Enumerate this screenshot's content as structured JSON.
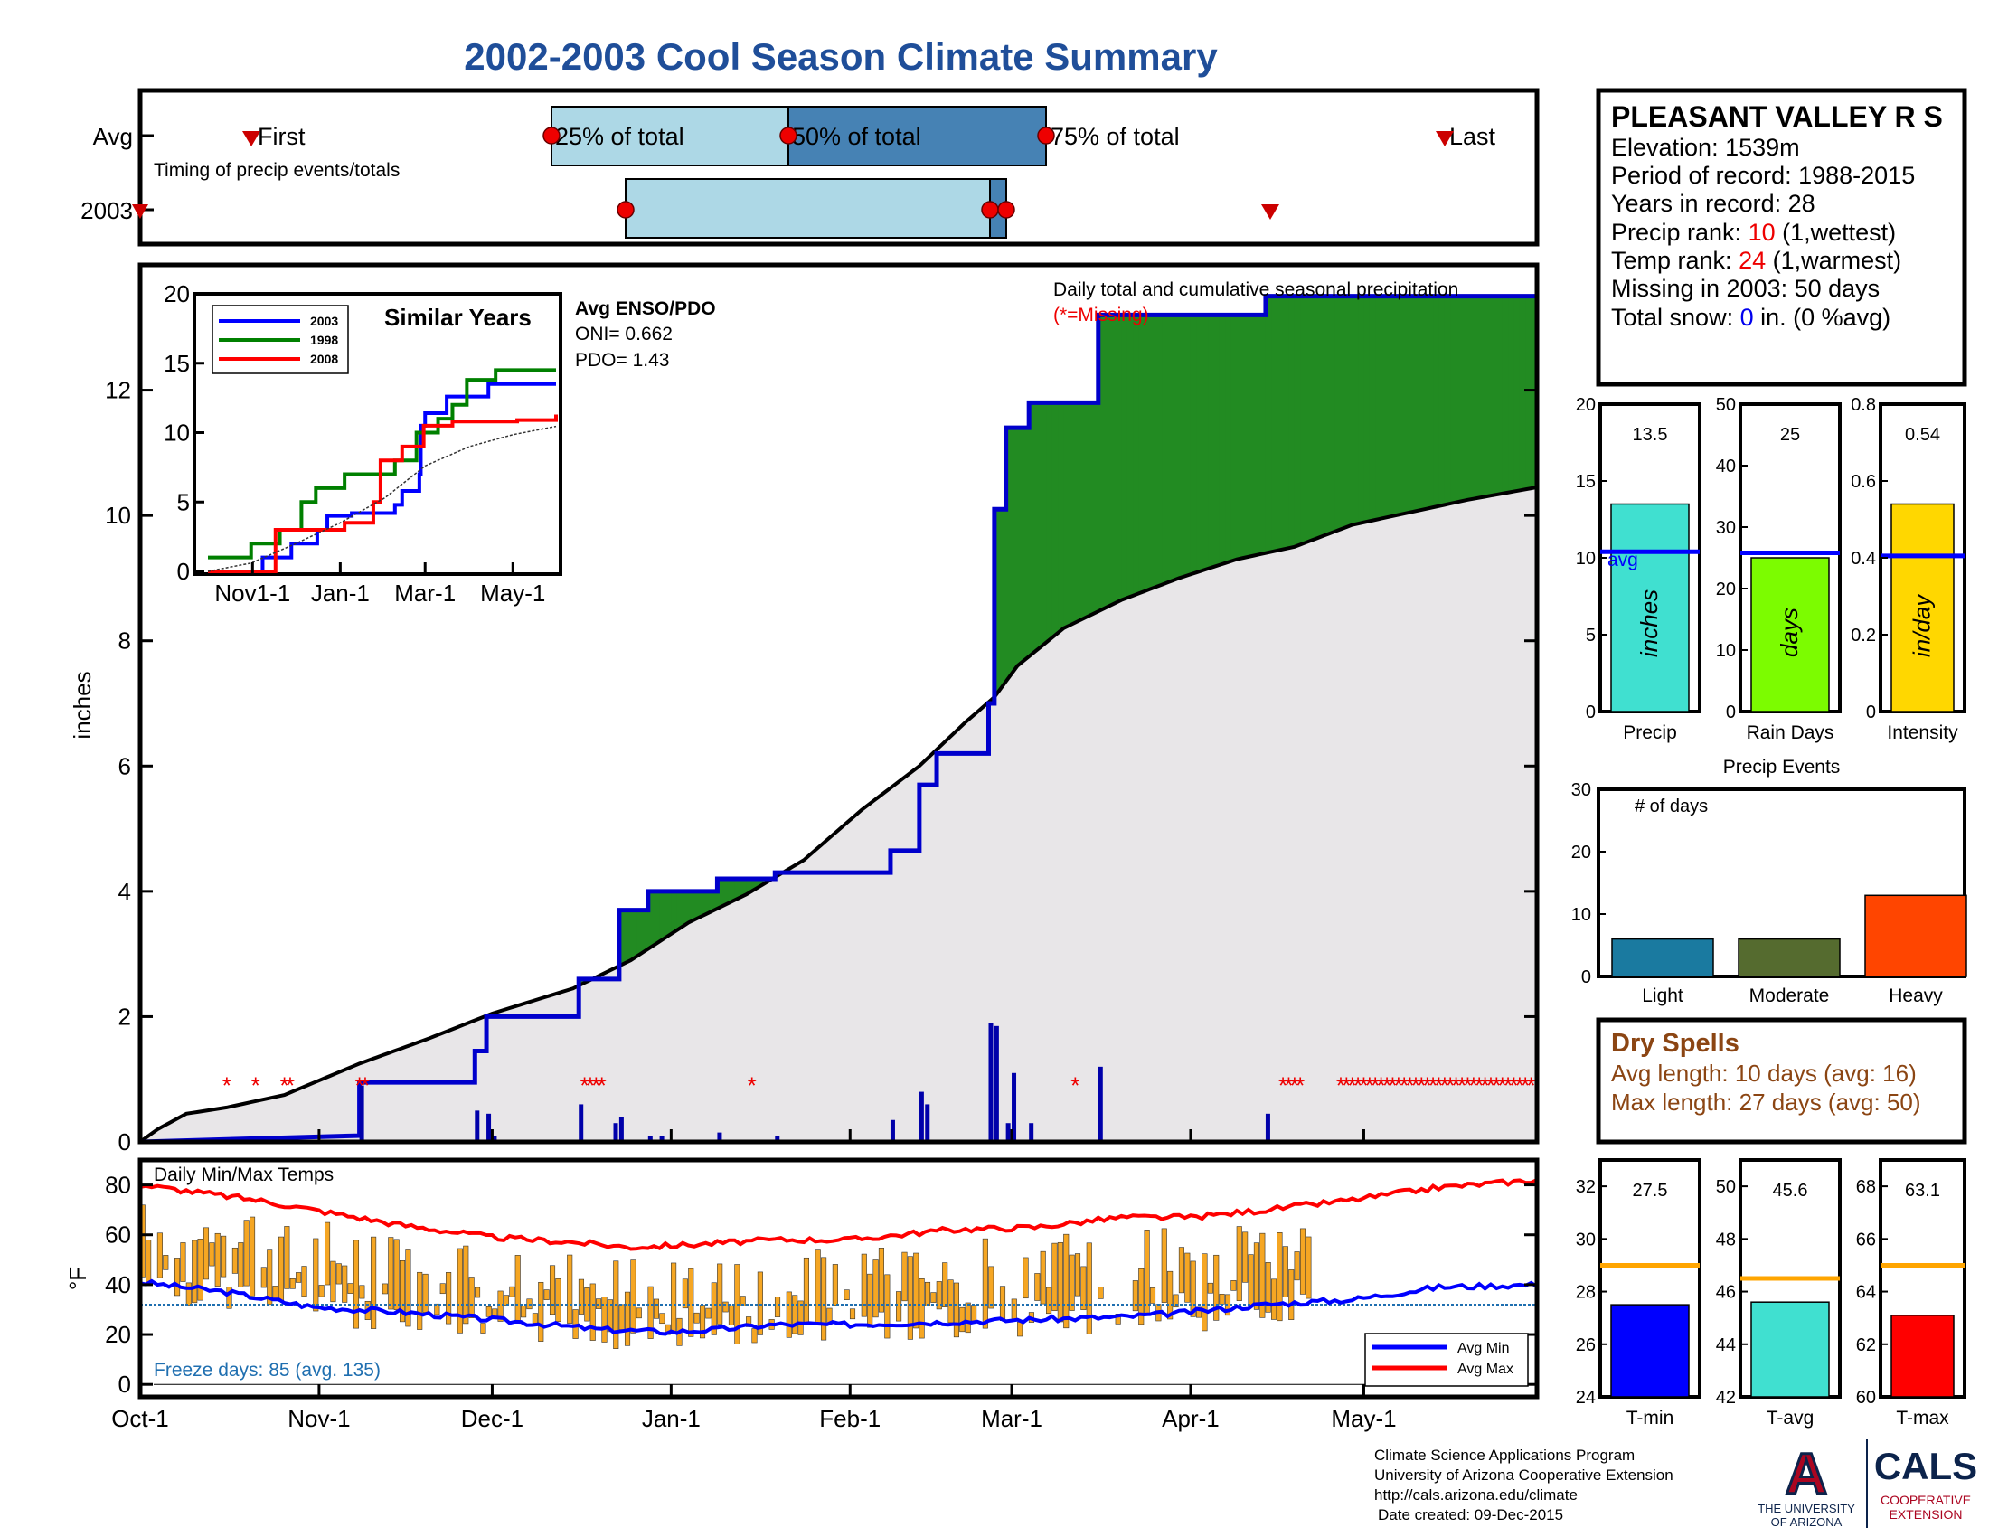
{
  "title": "2002-2003 Cool Season Climate Summary",
  "colors": {
    "title": "#1F4E99",
    "accum_green": "#228B22",
    "accum_brown": "#B8860B",
    "cum_fill": "#E8E6E8",
    "cum_line": "#0000CC",
    "temp_bar": "#F5A623",
    "avg_min": "#0000FF",
    "avg_max": "#FF0000",
    "precip_bar": "#40E0D0",
    "raindays_bar": "#7CFC00",
    "intensity_bar": "#FFD700",
    "light_bar": "#1A7AA0",
    "moderate_bar": "#556B2F",
    "heavy_bar": "#FF4500",
    "tmin_bar": "#0000FF",
    "tavg_bar": "#40E0D0",
    "tmax_bar": "#FF0000",
    "avg_line_orange": "#FFA500",
    "dry_spell_text": "#8B4513"
  },
  "timing": {
    "caption": "Timing of precip events/totals",
    "avg_label": "Avg",
    "year_label": "2003",
    "first_label": "First",
    "last_label": "Last",
    "p25_label": "25% of total",
    "p50_label": "50% of total",
    "p75_label": "75% of total"
  },
  "station": {
    "name": "PLEASANT VALLEY R S",
    "elevation": "Elevation: 1539m",
    "period": "Period of record: 1988-2015",
    "years": "Years in record: 28",
    "precip_rank_label": "Precip rank: ",
    "precip_rank_value": "10",
    "precip_rank_suffix": " (1,wettest)",
    "temp_rank_label": "Temp rank: ",
    "temp_rank_value": "24",
    "temp_rank_suffix": " (1,warmest)",
    "missing": "Missing in 2003: 50 days",
    "snow_label": "Total snow: ",
    "snow_value": "0",
    "snow_suffix": " in. (0 %avg)"
  },
  "main_panel": {
    "ylabel": "inches",
    "caption": "Daily total and cumulative seasonal precipitation",
    "missing_note": "(*=Missing)",
    "enso_title": "Avg ENSO/PDO",
    "oni": "ONI= 0.662",
    "pdo": "PDO= 1.43",
    "inset_title": "Similar Years",
    "inset_legend": [
      "2003",
      "1998",
      "2008"
    ]
  },
  "temp_panel": {
    "ylabel": "°F",
    "title": "Daily Min/Max Temps",
    "freeze": "Freeze days: 85 (avg. 135)",
    "legend_min": "Avg Min",
    "legend_max": "Avg Max"
  },
  "summary_bars": {
    "precip": {
      "value": "13.5",
      "label": "Precip",
      "unit": "inches",
      "avg_label": "avg"
    },
    "raindays": {
      "value": "25",
      "label": "Rain Days",
      "unit": "days"
    },
    "intensity": {
      "value": "0.54",
      "label": "Intensity",
      "unit": "in/day"
    },
    "events_title": "Precip Events",
    "events_ylabel": "# of days",
    "events_labels": [
      "Light",
      "Moderate",
      "Heavy"
    ],
    "tmin": {
      "value": "27.5",
      "label": "T-min"
    },
    "tavg": {
      "value": "45.6",
      "label": "T-avg"
    },
    "tmax": {
      "value": "63.1",
      "label": "T-max"
    }
  },
  "dry_spells": {
    "title": "Dry Spells",
    "avg": "Avg length: 10 days (avg: 16)",
    "max": "Max length: 27 days (avg: 50)"
  },
  "footer": {
    "line1": "Climate Science Applications Program",
    "line2": "University of Arizona Cooperative Extension",
    "line3": "http://cals.arizona.edu/climate",
    "line4": "Date created: 09-Dec-2015",
    "logo_ua": "A",
    "logo_ua_text1": "THE UNIVERSITY",
    "logo_ua_text2": "OF ARIZONA",
    "logo_cals": "CALS",
    "logo_cals_sub1": "COOPERATIVE",
    "logo_cals_sub2": "EXTENSION"
  },
  "chart_data": [
    {
      "type": "line",
      "name": "cumulative_precip",
      "ylabel": "inches",
      "ylim": [
        0,
        14
      ],
      "yticks": [
        0,
        2,
        4,
        6,
        8,
        10,
        12
      ],
      "x_labels": [
        "Oct-1",
        "Nov-1",
        "Dec-1",
        "Jan-1",
        "Feb-1",
        "Mar-1",
        "Apr-1",
        "May-1"
      ],
      "x_label_days": [
        0,
        31,
        61,
        92,
        123,
        151,
        182,
        212
      ],
      "x_max_day": 242,
      "avg_cumulative": [
        [
          0,
          0
        ],
        [
          3,
          0.2
        ],
        [
          8,
          0.45
        ],
        [
          15,
          0.55
        ],
        [
          25,
          0.75
        ],
        [
          38,
          1.25
        ],
        [
          50,
          1.65
        ],
        [
          61,
          2.05
        ],
        [
          75,
          2.45
        ],
        [
          85,
          2.9
        ],
        [
          95,
          3.5
        ],
        [
          105,
          3.95
        ],
        [
          115,
          4.5
        ],
        [
          125,
          5.3
        ],
        [
          135,
          6.0
        ],
        [
          143,
          6.7
        ],
        [
          148,
          7.1
        ],
        [
          152,
          7.6
        ],
        [
          160,
          8.2
        ],
        [
          170,
          8.65
        ],
        [
          180,
          9.0
        ],
        [
          190,
          9.3
        ],
        [
          200,
          9.5
        ],
        [
          210,
          9.85
        ],
        [
          220,
          10.05
        ],
        [
          230,
          10.25
        ],
        [
          242,
          10.45
        ]
      ],
      "obs_cumulative": [
        [
          0,
          0
        ],
        [
          19,
          0.05
        ],
        [
          38,
          0.1
        ],
        [
          38,
          0.95
        ],
        [
          58,
          0.95
        ],
        [
          58,
          1.45
        ],
        [
          60,
          1.45
        ],
        [
          60,
          2.0
        ],
        [
          76,
          2.0
        ],
        [
          76,
          2.6
        ],
        [
          83,
          2.6
        ],
        [
          83,
          3.7
        ],
        [
          88,
          3.7
        ],
        [
          88,
          4.0
        ],
        [
          100,
          4.0
        ],
        [
          100,
          4.2
        ],
        [
          110,
          4.2
        ],
        [
          110,
          4.3
        ],
        [
          130,
          4.3
        ],
        [
          130,
          4.65
        ],
        [
          135,
          4.65
        ],
        [
          135,
          5.7
        ],
        [
          138,
          5.7
        ],
        [
          138,
          6.2
        ],
        [
          147,
          6.2
        ],
        [
          147,
          7.0
        ],
        [
          148,
          7.0
        ],
        [
          148,
          10.1
        ],
        [
          150,
          10.1
        ],
        [
          150,
          11.4
        ],
        [
          154,
          11.4
        ],
        [
          154,
          11.8
        ],
        [
          166,
          11.8
        ],
        [
          166,
          13.2
        ],
        [
          182,
          13.2
        ],
        [
          195,
          13.2
        ],
        [
          195,
          13.5
        ],
        [
          242,
          13.5
        ]
      ],
      "daily_precip": [
        [
          38,
          0.9
        ],
        [
          58,
          0.5
        ],
        [
          60,
          0.45
        ],
        [
          61,
          0.1
        ],
        [
          76,
          0.6
        ],
        [
          82,
          0.3
        ],
        [
          83,
          0.4
        ],
        [
          88,
          0.1
        ],
        [
          90,
          0.1
        ],
        [
          100,
          0.15
        ],
        [
          110,
          0.1
        ],
        [
          130,
          0.35
        ],
        [
          135,
          0.8
        ],
        [
          136,
          0.6
        ],
        [
          147,
          1.9
        ],
        [
          148,
          1.85
        ],
        [
          150,
          0.3
        ],
        [
          151,
          1.1
        ],
        [
          154,
          0.3
        ],
        [
          166,
          1.2
        ],
        [
          195,
          0.45
        ]
      ],
      "missing_days": [
        15,
        20,
        25,
        26,
        38,
        39,
        77,
        78,
        79,
        80,
        106,
        162,
        198,
        199,
        200,
        201,
        208,
        209,
        210,
        211,
        212,
        213,
        214,
        215,
        216,
        217,
        218,
        219,
        220,
        221,
        222,
        223,
        224,
        225,
        226,
        227,
        228,
        229,
        230,
        231,
        232,
        233,
        234,
        235,
        236,
        237,
        238,
        239,
        240,
        241
      ]
    },
    {
      "type": "line",
      "name": "similar_years_inset",
      "title": "Similar Years",
      "ylim": [
        0,
        20
      ],
      "yticks": [
        0,
        5,
        10,
        15,
        20
      ],
      "x_labels": [
        "Nov1-1",
        "Jan-1",
        "Mar-1",
        "May-1"
      ],
      "x_label_days": [
        31,
        92,
        151,
        212
      ],
      "series": [
        {
          "name": "2003",
          "values": [
            [
              0,
              0
            ],
            [
              38,
              1
            ],
            [
              58,
              2
            ],
            [
              76,
              3
            ],
            [
              83,
              4
            ],
            [
              100,
              4.2
            ],
            [
              130,
              4.8
            ],
            [
              135,
              5.8
            ],
            [
              147,
              7
            ],
            [
              148,
              10.5
            ],
            [
              151,
              11.4
            ],
            [
              166,
              12.6
            ],
            [
              195,
              13.5
            ],
            [
              242,
              13.5
            ]
          ]
        },
        {
          "name": "1998",
          "values": [
            [
              0,
              1
            ],
            [
              20,
              1
            ],
            [
              30,
              2
            ],
            [
              50,
              3
            ],
            [
              65,
              5
            ],
            [
              75,
              6
            ],
            [
              95,
              7
            ],
            [
              130,
              8
            ],
            [
              145,
              10
            ],
            [
              160,
              11
            ],
            [
              170,
              12
            ],
            [
              180,
              13.8
            ],
            [
              200,
              14.5
            ],
            [
              242,
              14.5
            ]
          ]
        },
        {
          "name": "2008",
          "values": [
            [
              0,
              0
            ],
            [
              45,
              0
            ],
            [
              47,
              3
            ],
            [
              95,
              3.5
            ],
            [
              115,
              5
            ],
            [
              120,
              8
            ],
            [
              135,
              9
            ],
            [
              150,
              10.5
            ],
            [
              170,
              10.8
            ],
            [
              215,
              10.9
            ],
            [
              242,
              11.3
            ]
          ]
        },
        {
          "name": "avg",
          "values": [
            [
              0,
              0
            ],
            [
              30,
              0.6
            ],
            [
              61,
              2
            ],
            [
              92,
              3.5
            ],
            [
              123,
              5.3
            ],
            [
              151,
              7.6
            ],
            [
              182,
              9
            ],
            [
              212,
              9.85
            ],
            [
              242,
              10.45
            ]
          ]
        }
      ]
    },
    {
      "type": "bar",
      "name": "daily_temps",
      "title": "Daily Min/Max Temps",
      "ylabel": "°F",
      "ylim": [
        -5,
        90
      ],
      "yticks": [
        0,
        20,
        40,
        60,
        80
      ],
      "freeze_line": 32,
      "avg_min": [
        [
          0,
          41
        ],
        [
          15,
          37
        ],
        [
          30,
          31
        ],
        [
          45,
          29
        ],
        [
          61,
          26
        ],
        [
          80,
          22
        ],
        [
          92,
          21
        ],
        [
          100,
          22
        ],
        [
          110,
          24
        ],
        [
          123,
          24
        ],
        [
          140,
          25
        ],
        [
          155,
          26
        ],
        [
          170,
          27
        ],
        [
          182,
          29
        ],
        [
          195,
          32
        ],
        [
          210,
          34
        ],
        [
          225,
          39
        ],
        [
          242,
          40
        ]
      ],
      "avg_max": [
        [
          0,
          80
        ],
        [
          10,
          77
        ],
        [
          20,
          74
        ],
        [
          30,
          70
        ],
        [
          45,
          64
        ],
        [
          61,
          59
        ],
        [
          75,
          57
        ],
        [
          85,
          55
        ],
        [
          95,
          56
        ],
        [
          110,
          58
        ],
        [
          123,
          58
        ],
        [
          140,
          62
        ],
        [
          155,
          63
        ],
        [
          170,
          67
        ],
        [
          182,
          67
        ],
        [
          195,
          70
        ],
        [
          210,
          74
        ],
        [
          225,
          79
        ],
        [
          242,
          82
        ]
      ]
    },
    {
      "type": "bar",
      "name": "precip_summary",
      "categories": [
        "Precip",
        "Rain Days",
        "Intensity"
      ],
      "values": [
        13.5,
        25,
        0.54
      ],
      "averages": [
        10.4,
        25.8,
        0.405
      ],
      "ylims": [
        [
          0,
          20
        ],
        [
          0,
          50
        ],
        [
          0,
          0.8
        ]
      ]
    },
    {
      "type": "bar",
      "name": "precip_events",
      "title": "Precip Events",
      "ylabel": "# of days",
      "categories": [
        "Light",
        "Moderate",
        "Heavy"
      ],
      "values": [
        6,
        6,
        13
      ],
      "ylim": [
        0,
        30
      ],
      "yticks": [
        0,
        10,
        20,
        30
      ]
    },
    {
      "type": "bar",
      "name": "temp_summary",
      "categories": [
        "T-min",
        "T-avg",
        "T-max"
      ],
      "values": [
        27.5,
        45.6,
        63.1
      ],
      "averages": [
        29,
        46.5,
        65
      ],
      "ylims": [
        [
          24,
          33
        ],
        [
          42,
          51
        ],
        [
          60,
          69
        ]
      ],
      "yticks": [
        [
          24,
          26,
          28,
          30,
          32
        ],
        [
          42,
          44,
          46,
          48,
          50
        ],
        [
          60,
          62,
          64,
          66,
          68
        ]
      ]
    }
  ]
}
